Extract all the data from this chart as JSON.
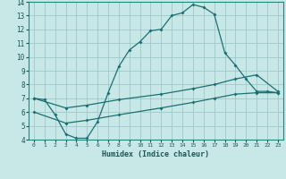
{
  "xlabel": "Humidex (Indice chaleur)",
  "bg_color": "#c8e8e8",
  "grid_color": "#a0c8c8",
  "line_color": "#1a7070",
  "xlim": [
    -0.5,
    23.5
  ],
  "ylim": [
    4,
    14
  ],
  "xticks": [
    0,
    1,
    2,
    3,
    4,
    5,
    6,
    7,
    8,
    9,
    10,
    11,
    12,
    13,
    14,
    15,
    16,
    17,
    18,
    19,
    20,
    21,
    22,
    23
  ],
  "yticks": [
    4,
    5,
    6,
    7,
    8,
    9,
    10,
    11,
    12,
    13,
    14
  ],
  "curve1_x": [
    0,
    1,
    2,
    3,
    4,
    5,
    6,
    7,
    8,
    9,
    10,
    11,
    12,
    13,
    14,
    15,
    16,
    17,
    18,
    19,
    20,
    21,
    22,
    23
  ],
  "curve1_y": [
    7.0,
    6.9,
    5.8,
    4.4,
    4.1,
    4.1,
    5.3,
    7.4,
    9.3,
    10.5,
    11.1,
    11.9,
    12.0,
    13.0,
    13.2,
    13.8,
    13.6,
    13.1,
    10.3,
    9.4,
    8.4,
    7.5,
    7.5,
    7.4
  ],
  "curve2_x": [
    0,
    3,
    5,
    8,
    12,
    15,
    17,
    19,
    21,
    23
  ],
  "curve2_y": [
    7.0,
    6.3,
    6.5,
    6.9,
    7.3,
    7.7,
    8.0,
    8.4,
    8.7,
    7.5
  ],
  "curve3_x": [
    0,
    3,
    5,
    8,
    12,
    15,
    17,
    19,
    21,
    23
  ],
  "curve3_y": [
    6.0,
    5.2,
    5.4,
    5.8,
    6.3,
    6.7,
    7.0,
    7.3,
    7.4,
    7.4
  ]
}
